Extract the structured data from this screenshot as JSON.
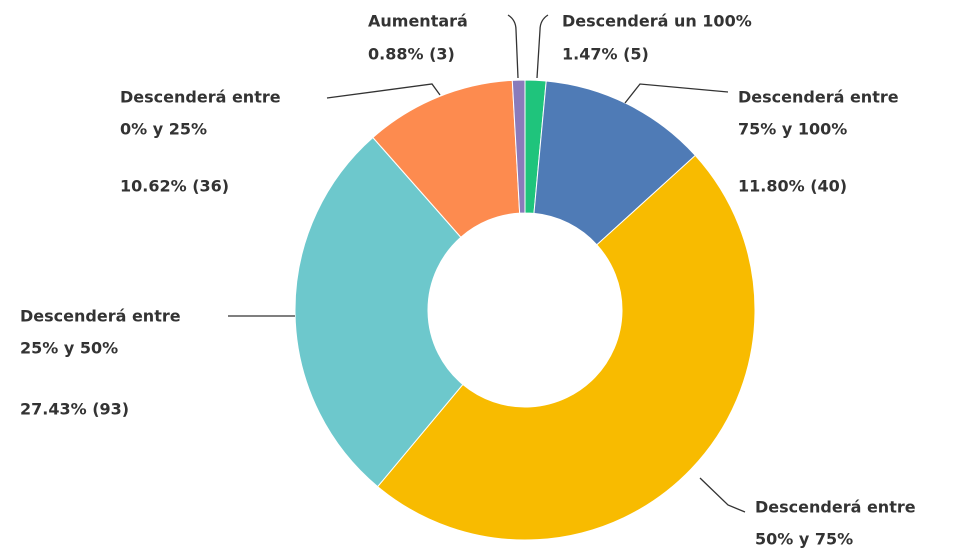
{
  "chart_data": {
    "type": "donut",
    "categories": [
      "Descenderá un 100%",
      [
        "Descenderá entre",
        "75% y 100%"
      ],
      [
        "Descenderá entre",
        "50% y 75%"
      ],
      [
        "Descenderá entre",
        "25% y 50%"
      ],
      [
        "Descenderá entre",
        "0% y 25%"
      ],
      "Aumentará"
    ],
    "values": [
      1.47,
      11.8,
      47.79,
      27.43,
      10.62,
      0.88
    ],
    "value_labels": [
      "1.47% (5)",
      "11.80% (40)",
      null,
      "27.43% (93)",
      "10.62% (36)",
      "0.88% (3)"
    ],
    "colors": [
      "#1fc47c",
      "#4f7bb6",
      "#f8bb00",
      "#6dc8cc",
      "#fd8b4f",
      "#8a7bbb"
    ]
  }
}
